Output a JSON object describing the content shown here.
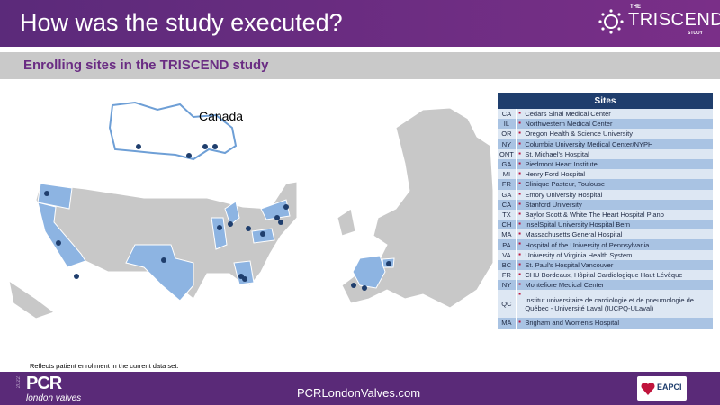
{
  "header": {
    "title": "How was the study executed?",
    "logo": {
      "the": "THE",
      "name": "TRISCEND",
      "study": "STUDY"
    }
  },
  "subtitle": "Enrolling sites in the TRISCEND study",
  "map": {
    "canada_label": "Canada",
    "highlight_color": "#8db4e2",
    "base_color": "#c8c8c8",
    "marker_color": "#1f3e6d"
  },
  "table": {
    "header": "Sites",
    "rows": [
      {
        "code": "CA",
        "site": "Cedars Sinai Medical Center"
      },
      {
        "code": "IL",
        "site": "Northwestern Medical Center"
      },
      {
        "code": "OR",
        "site": "Oregon Health & Science University"
      },
      {
        "code": "NY",
        "site": "Columbia University Medical Center/NYPH"
      },
      {
        "code": "ONT",
        "site": "St. Michael's Hospital"
      },
      {
        "code": "GA",
        "site": "Piedmont Heart Institute"
      },
      {
        "code": "MI",
        "site": "Henry Ford Hospital"
      },
      {
        "code": "FR",
        "site": "Clinique Pasteur, Toulouse"
      },
      {
        "code": "GA",
        "site": "Emory University Hospital"
      },
      {
        "code": "CA",
        "site": "Stanford University"
      },
      {
        "code": "TX",
        "site": "Baylor Scott & White The Heart Hospital Plano"
      },
      {
        "code": "CH",
        "site": "InselSpital University Hospital Bern"
      },
      {
        "code": "MA",
        "site": "Massachusetts General Hospital"
      },
      {
        "code": "PA",
        "site": "Hospital of the University of Pennsylvania"
      },
      {
        "code": "VA",
        "site": "University of Virginia Health System"
      },
      {
        "code": "BC",
        "site": "St. Paul's Hospital Vancouver"
      },
      {
        "code": "FR",
        "site": "CHU Bordeaux, Hôpital Cardiologique Haut Lévêque"
      },
      {
        "code": "NY",
        "site": "Montefiore Medical Center"
      },
      {
        "code": "QC",
        "site": "Institut universitaire de cardiologie et de pneumologie de Québec - Université Laval (IUCPQ-ULaval)"
      },
      {
        "code": "MA",
        "site": "Brigham and Women's Hospital"
      }
    ]
  },
  "note": "Reflects patient enrollment  in the current  data set.",
  "footer": {
    "year": "2022",
    "pcr": "PCR",
    "pcr_sub": "london valves",
    "url": "PCRLondonValves.com",
    "eapci": "EAPCI"
  }
}
